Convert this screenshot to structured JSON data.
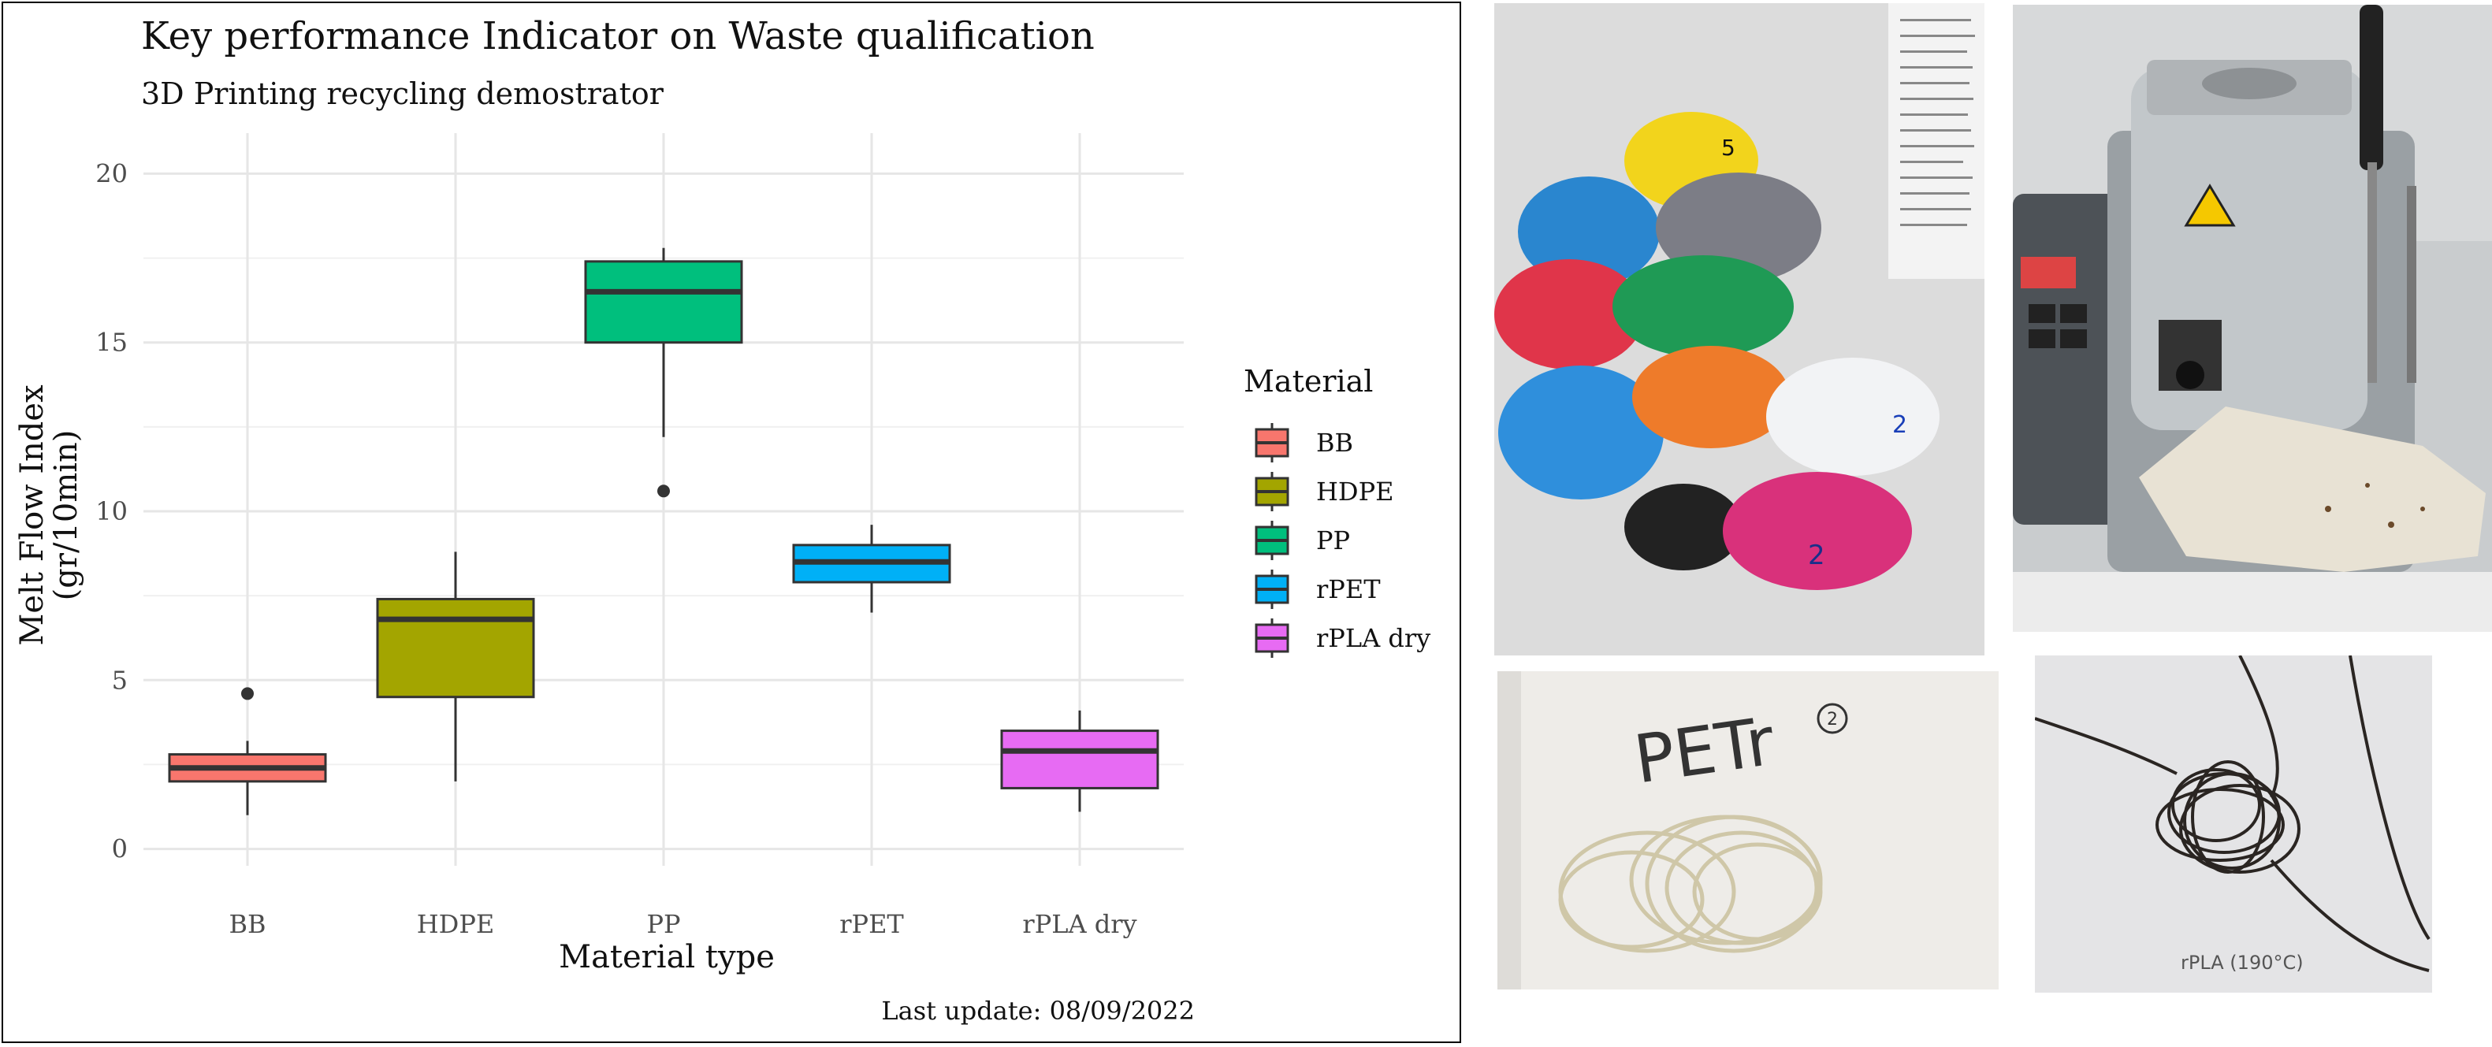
{
  "chart_data": {
    "type": "box",
    "title": "Key performance Indicator on Waste qualification",
    "subtitle": "3D Printing recycling demostrator",
    "xlabel": "Material type",
    "ylabel_line1": "Melt Flow Index",
    "ylabel_line2": "(gr/10min)",
    "ylim": [
      0,
      20
    ],
    "yticks": [
      "0",
      "5",
      "10",
      "15",
      "20"
    ],
    "grid": true,
    "legend": {
      "title": "Material",
      "position": "right"
    },
    "categories": [
      "BB",
      "HDPE",
      "PP",
      "rPET",
      "rPLA dry"
    ],
    "series": [
      {
        "name": "BB",
        "color": "#F8766D",
        "min": 1.0,
        "q1": 2.0,
        "median": 2.4,
        "q3": 2.8,
        "max": 3.2,
        "outliers": [
          4.6
        ]
      },
      {
        "name": "HDPE",
        "color": "#A3A500",
        "min": 2.0,
        "q1": 4.5,
        "median": 6.8,
        "q3": 7.4,
        "max": 8.8,
        "outliers": []
      },
      {
        "name": "PP",
        "color": "#00BF7D",
        "min": 12.2,
        "q1": 15.0,
        "median": 16.5,
        "q3": 17.4,
        "max": 17.8,
        "outliers": [
          10.6
        ]
      },
      {
        "name": "rPET",
        "color": "#00B0F6",
        "min": 7.0,
        "q1": 7.9,
        "median": 8.5,
        "q3": 9.0,
        "max": 9.6,
        "outliers": []
      },
      {
        "name": "rPLA dry",
        "color": "#E76BF3",
        "min": 1.1,
        "q1": 1.8,
        "median": 2.9,
        "q3": 3.5,
        "max": 4.1,
        "outliers": []
      }
    ],
    "caption": "Last update: 08/09/2022"
  },
  "photos": [
    {
      "name": "plastic-pellet-bags-photo",
      "labels": [
        "5",
        "2",
        "2"
      ]
    },
    {
      "name": "melt-flow-indexer-photo"
    },
    {
      "name": "petr-filament-photo",
      "labels": [
        "PETr",
        "2"
      ]
    },
    {
      "name": "rpla-filament-photo",
      "labels": [
        "rPLA (190°C)"
      ]
    }
  ]
}
